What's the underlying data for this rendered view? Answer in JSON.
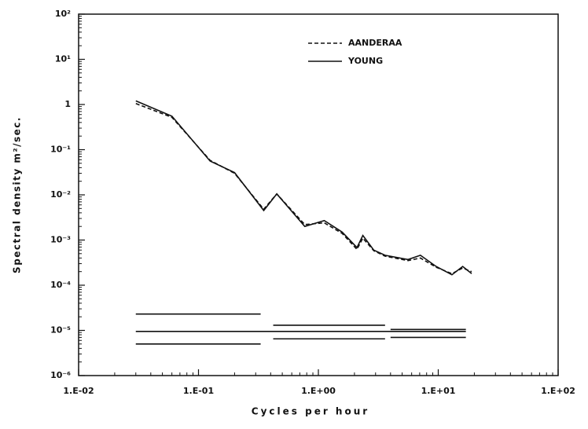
{
  "chart_data": {
    "type": "line",
    "x_label": "Cycles per hour",
    "y_label": "Spectral density m²/sec.",
    "xscale": "log",
    "yscale": "log",
    "xlim": [
      0.01,
      100
    ],
    "ylim": [
      1e-06,
      100
    ],
    "xticks": [
      {
        "value": 0.01,
        "label": "1.E-02"
      },
      {
        "value": 0.1,
        "label": "1.E-01"
      },
      {
        "value": 1,
        "label": "1.E+00"
      },
      {
        "value": 10,
        "label": "1.E+01"
      },
      {
        "value": 100,
        "label": "1.E+02"
      }
    ],
    "yticks": [
      {
        "value": 1e-06,
        "label": "10⁻⁶"
      },
      {
        "value": 1e-05,
        "label": "10⁻⁵"
      },
      {
        "value": 0.0001,
        "label": "10⁻⁴"
      },
      {
        "value": 0.001,
        "label": "10⁻³"
      },
      {
        "value": 0.01,
        "label": "10⁻²"
      },
      {
        "value": 0.1,
        "label": "10⁻¹"
      },
      1,
      {
        "value": 10,
        "label": "10¹"
      },
      {
        "value": 100,
        "label": "10²"
      }
    ],
    "x": [
      0.03,
      0.06,
      0.125,
      0.2,
      0.35,
      0.45,
      0.77,
      1.12,
      1.58,
      2.1,
      2.35,
      2.9,
      3.6,
      5.6,
      7.1,
      9.6,
      13,
      16,
      19
    ],
    "series": [
      {
        "name": "AANDERAA",
        "color": "#111111",
        "dash": true,
        "values": [
          1.05,
          0.52,
          0.058,
          0.03,
          0.0048,
          0.0105,
          0.0022,
          0.0024,
          0.0014,
          0.00062,
          0.0011,
          0.00058,
          0.00044,
          0.00035,
          0.0004,
          0.00025,
          0.00018,
          0.00024,
          0.0002
        ]
      },
      {
        "name": "YOUNG",
        "color": "#111111",
        "dash": false,
        "values": [
          1.2,
          0.55,
          0.056,
          0.031,
          0.0045,
          0.0105,
          0.002,
          0.0027,
          0.0015,
          0.00068,
          0.00126,
          0.0006,
          0.00046,
          0.00037,
          0.00046,
          0.00026,
          0.00017,
          0.00026,
          0.00018
        ]
      }
    ],
    "reference_lines": [
      {
        "x": [
          0.03,
          0.33
        ],
        "value": 2.3e-05
      },
      {
        "x": [
          0.03,
          17
        ],
        "value": 9.5e-06
      },
      {
        "x": [
          0.03,
          0.33
        ],
        "value": 5e-06
      },
      {
        "x": [
          0.42,
          3.6
        ],
        "value": 1.3e-05
      },
      {
        "x": [
          0.42,
          3.6
        ],
        "value": 6.5e-06
      },
      {
        "x": [
          4,
          17
        ],
        "value": 1.05e-05
      },
      {
        "x": [
          4,
          17
        ],
        "value": 7e-06
      }
    ],
    "legend": "top-center"
  }
}
